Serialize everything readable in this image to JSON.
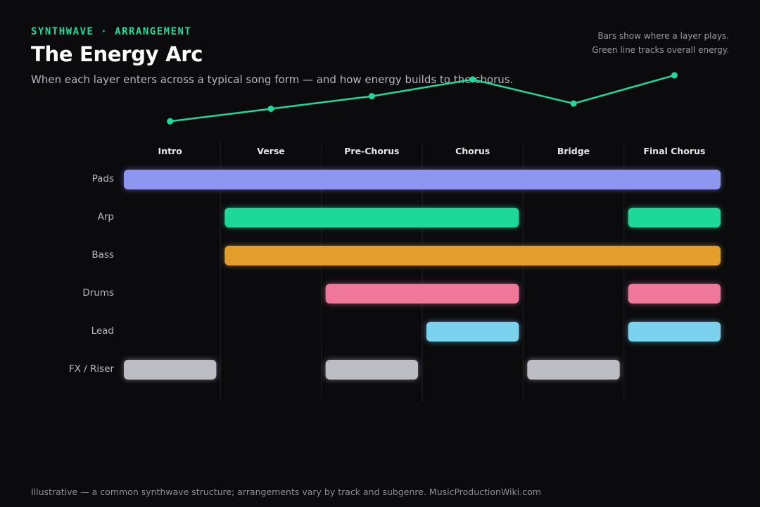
{
  "header": {
    "eyebrow": "SYNTHWAVE · ARRANGEMENT",
    "title": "The Energy Arc",
    "subtitle": "When each layer enters across a typical song form — and how energy builds to the chorus."
  },
  "notes": {
    "line1": "Bars show where a layer plays.",
    "line2": "Green line tracks overall energy."
  },
  "footer": "Illustrative — a common synthwave structure; arrangements vary by track and subgenre. MusicProductionWiki.com",
  "colors": {
    "background": "#0b0b0e",
    "energy_line": "#1fd99a",
    "divider": "#1f1f26"
  },
  "chart_data": {
    "type": "timeline",
    "sections": [
      "Intro",
      "Verse",
      "Pre-Chorus",
      "Chorus",
      "Bridge",
      "Final Chorus"
    ],
    "energy": {
      "values": [
        2,
        3.2,
        4.4,
        6,
        3.7,
        6.4
      ],
      "ylim": [
        0,
        7
      ]
    },
    "layers": [
      {
        "name": "Pads",
        "color": "#8e96ef",
        "active": [
          1,
          1,
          1,
          1,
          1,
          1
        ]
      },
      {
        "name": "Arp",
        "color": "#1fd99a",
        "active": [
          0,
          1,
          1,
          1,
          0,
          1
        ]
      },
      {
        "name": "Bass",
        "color": "#e39d2a",
        "active": [
          0,
          1,
          1,
          1,
          1,
          1
        ]
      },
      {
        "name": "Drums",
        "color": "#ef7799",
        "active": [
          0,
          0,
          1,
          1,
          0,
          1
        ]
      },
      {
        "name": "Lead",
        "color": "#7bd2ee",
        "active": [
          0,
          0,
          0,
          1,
          0,
          1
        ]
      },
      {
        "name": "FX / Riser",
        "color": "#bcbcc4",
        "active": [
          1,
          0,
          1,
          0,
          1,
          0
        ]
      }
    ]
  }
}
